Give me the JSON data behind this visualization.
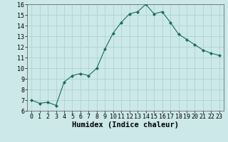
{
  "x": [
    0,
    1,
    2,
    3,
    4,
    5,
    6,
    7,
    8,
    9,
    10,
    11,
    12,
    13,
    14,
    15,
    16,
    17,
    18,
    19,
    20,
    21,
    22,
    23
  ],
  "y": [
    7.0,
    6.7,
    6.8,
    6.5,
    8.7,
    9.3,
    9.5,
    9.3,
    10.0,
    11.8,
    13.3,
    14.3,
    15.1,
    15.3,
    16.0,
    15.1,
    15.3,
    14.3,
    13.2,
    12.7,
    12.2,
    11.7,
    11.4,
    11.2
  ],
  "xlabel": "Humidex (Indice chaleur)",
  "xlim": [
    -0.5,
    23.5
  ],
  "ylim": [
    6,
    16
  ],
  "yticks": [
    6,
    7,
    8,
    9,
    10,
    11,
    12,
    13,
    14,
    15,
    16
  ],
  "xticks": [
    0,
    1,
    2,
    3,
    4,
    5,
    6,
    7,
    8,
    9,
    10,
    11,
    12,
    13,
    14,
    15,
    16,
    17,
    18,
    19,
    20,
    21,
    22,
    23
  ],
  "line_color": "#1a6b5a",
  "marker_color": "#1a6b5a",
  "bg_color": "#cce8e8",
  "grid_color": "#aed4d4",
  "tick_label_fontsize": 6.0,
  "xlabel_fontsize": 7.5
}
